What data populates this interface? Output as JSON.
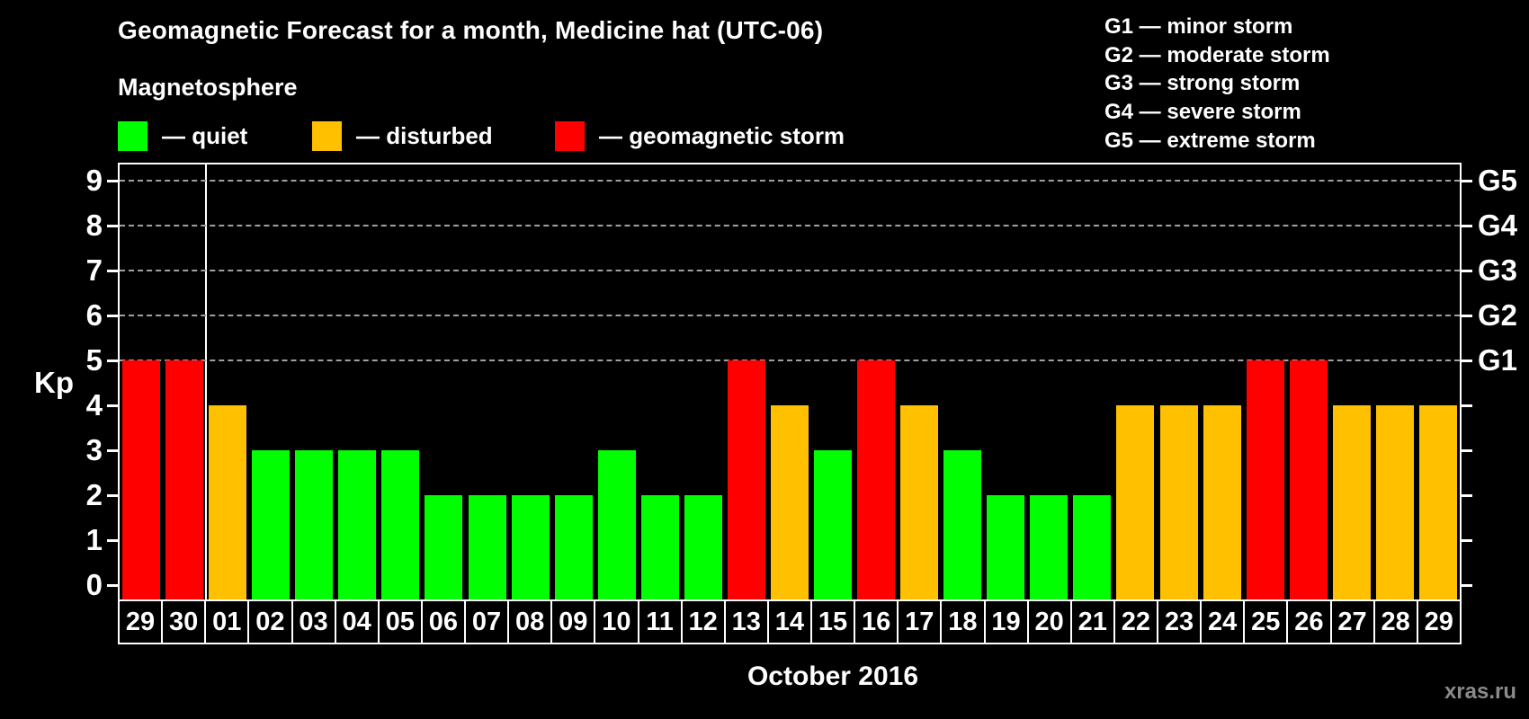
{
  "header": {
    "title": "Geomagnetic Forecast for a month, Medicine hat (UTC-06)",
    "subtitle": "Magnetosphere"
  },
  "legend": {
    "items": [
      {
        "label": "— quiet",
        "state": "quiet"
      },
      {
        "label": "— disturbed",
        "state": "disturbed"
      },
      {
        "label": "— geomagnetic storm",
        "state": "storm"
      }
    ]
  },
  "g_legend": {
    "lines": [
      "G1 — minor storm",
      "G2 — moderate storm",
      "G3 — strong storm",
      "G4 — severe storm",
      "G5 — extreme storm"
    ]
  },
  "colors": {
    "quiet": "#00ff00",
    "disturbed": "#ffc000",
    "storm": "#ff0000",
    "grid": "#a0a0a0",
    "axis": "#ffffff",
    "watermark": "#8a8a8a"
  },
  "axes": {
    "y_label": "Kp",
    "y_ticks": [
      0,
      1,
      2,
      3,
      4,
      5,
      6,
      7,
      8,
      9
    ],
    "g_labels": [
      {
        "kp": 5,
        "label": "G1"
      },
      {
        "kp": 6,
        "label": "G2"
      },
      {
        "kp": 7,
        "label": "G3"
      },
      {
        "kp": 8,
        "label": "G4"
      },
      {
        "kp": 9,
        "label": "G5"
      }
    ],
    "x_label": "October 2016"
  },
  "watermark": "xras.ru",
  "chart_data": {
    "type": "bar",
    "title": "Geomagnetic Forecast for a month, Medicine hat (UTC-06)",
    "xlabel": "October 2016",
    "ylabel": "Kp",
    "ylim": [
      0,
      9
    ],
    "grid": "horizontal dashed lines at Kp 5,6,7,8,9 (G1–G5 levels)",
    "legend_position": "top-left and top-right",
    "month_separator_after_index": 1,
    "categories": [
      "29",
      "30",
      "01",
      "02",
      "03",
      "04",
      "05",
      "06",
      "07",
      "08",
      "09",
      "10",
      "11",
      "12",
      "13",
      "14",
      "15",
      "16",
      "17",
      "18",
      "19",
      "20",
      "21",
      "22",
      "23",
      "24",
      "25",
      "26",
      "27",
      "28",
      "29"
    ],
    "points": [
      {
        "date": "29",
        "kp": 5,
        "state": "storm"
      },
      {
        "date": "30",
        "kp": 5,
        "state": "storm"
      },
      {
        "date": "01",
        "kp": 4,
        "state": "disturbed"
      },
      {
        "date": "02",
        "kp": 3,
        "state": "quiet"
      },
      {
        "date": "03",
        "kp": 3,
        "state": "quiet"
      },
      {
        "date": "04",
        "kp": 3,
        "state": "quiet"
      },
      {
        "date": "05",
        "kp": 3,
        "state": "quiet"
      },
      {
        "date": "06",
        "kp": 2,
        "state": "quiet"
      },
      {
        "date": "07",
        "kp": 2,
        "state": "quiet"
      },
      {
        "date": "08",
        "kp": 2,
        "state": "quiet"
      },
      {
        "date": "09",
        "kp": 2,
        "state": "quiet"
      },
      {
        "date": "10",
        "kp": 3,
        "state": "quiet"
      },
      {
        "date": "11",
        "kp": 2,
        "state": "quiet"
      },
      {
        "date": "12",
        "kp": 2,
        "state": "quiet"
      },
      {
        "date": "13",
        "kp": 5,
        "state": "storm"
      },
      {
        "date": "14",
        "kp": 4,
        "state": "disturbed"
      },
      {
        "date": "15",
        "kp": 3,
        "state": "quiet"
      },
      {
        "date": "16",
        "kp": 5,
        "state": "storm"
      },
      {
        "date": "17",
        "kp": 4,
        "state": "disturbed"
      },
      {
        "date": "18",
        "kp": 3,
        "state": "quiet"
      },
      {
        "date": "19",
        "kp": 2,
        "state": "quiet"
      },
      {
        "date": "20",
        "kp": 2,
        "state": "quiet"
      },
      {
        "date": "21",
        "kp": 2,
        "state": "quiet"
      },
      {
        "date": "22",
        "kp": 4,
        "state": "disturbed"
      },
      {
        "date": "23",
        "kp": 4,
        "state": "disturbed"
      },
      {
        "date": "24",
        "kp": 4,
        "state": "disturbed"
      },
      {
        "date": "25",
        "kp": 5,
        "state": "storm"
      },
      {
        "date": "26",
        "kp": 5,
        "state": "storm"
      },
      {
        "date": "27",
        "kp": 4,
        "state": "disturbed"
      },
      {
        "date": "28",
        "kp": 4,
        "state": "disturbed"
      },
      {
        "date": "29",
        "kp": 4,
        "state": "disturbed"
      }
    ]
  }
}
